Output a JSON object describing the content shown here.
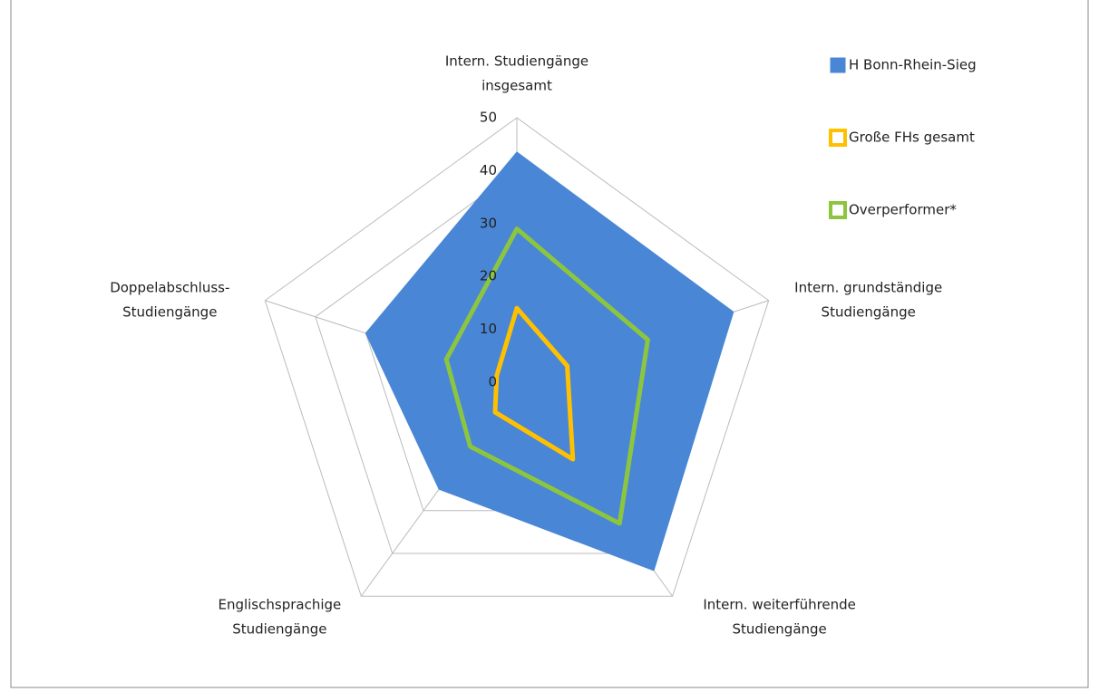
{
  "chart_data": {
    "type": "radar",
    "categories": [
      [
        "Intern. Studiengänge",
        "insgesamt"
      ],
      [
        "Intern. grundständige",
        "Studiengänge"
      ],
      [
        "Intern. weiterführende",
        "Studiengänge"
      ],
      [
        "Englischsprachige",
        "Studiengänge"
      ],
      [
        "Doppelabschluss-",
        "Studiengänge"
      ]
    ],
    "series": [
      {
        "name": "H Bonn-Rhein-Sieg",
        "color": "#4a86d6",
        "fill": true,
        "values": [
          43.5,
          43,
          44,
          25,
          30
        ]
      },
      {
        "name": "Große FHs gesamt",
        "color": "#ffc000",
        "fill": false,
        "values": [
          14,
          10,
          18,
          7,
          4
        ]
      },
      {
        "name": "Overperformer*",
        "color": "#8cc63f",
        "fill": false,
        "values": [
          29,
          26,
          33,
          15,
          14
        ]
      }
    ],
    "ylim": [
      0,
      50
    ],
    "yticks": [
      0,
      10,
      20,
      30,
      40,
      50
    ],
    "grid": true,
    "legend": "top-right"
  }
}
